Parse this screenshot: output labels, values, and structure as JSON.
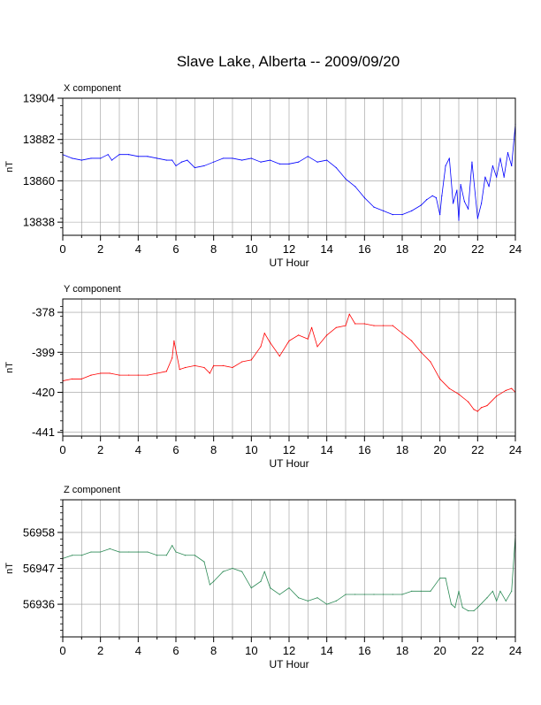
{
  "page": {
    "title": "Slave Lake, Alberta -- 2009/09/20"
  },
  "chart_data": [
    {
      "type": "line",
      "title": "X component",
      "xlabel": "UT Hour",
      "ylabel": "nT",
      "xlim": [
        0,
        24
      ],
      "ylim": [
        13831,
        13904
      ],
      "xticks": [
        0,
        2,
        4,
        6,
        8,
        10,
        12,
        14,
        16,
        18,
        20,
        22,
        24
      ],
      "yticks": [
        13838,
        13860,
        13882,
        13904
      ],
      "grid": true,
      "color": "#0000ff",
      "series": [
        {
          "x": [
            0,
            0.5,
            1,
            1.5,
            2,
            2.4,
            2.6,
            3,
            3.5,
            4,
            4.5,
            5,
            5.5,
            5.8,
            6,
            6.3,
            6.6,
            7,
            7.5,
            8,
            8.5,
            9,
            9.5,
            10,
            10.5,
            11,
            11.5,
            12,
            12.5,
            13,
            13.5,
            14,
            14.5,
            15,
            15.5,
            16,
            16.5,
            17,
            17.5,
            18,
            18.5,
            19,
            19.3,
            19.6,
            19.8,
            20,
            20.1,
            20.3,
            20.5,
            20.7,
            20.9,
            21,
            21.1,
            21.3,
            21.5,
            21.7,
            22,
            22.2,
            22.4,
            22.6,
            22.8,
            23,
            23.2,
            23.4,
            23.6,
            23.8,
            24
          ],
          "y": [
            13874,
            13872,
            13871,
            13872,
            13872,
            13874,
            13871,
            13874,
            13874,
            13873,
            13873,
            13872,
            13871,
            13871,
            13868,
            13870,
            13871,
            13867,
            13868,
            13870,
            13872,
            13872,
            13871,
            13872,
            13870,
            13871,
            13869,
            13869,
            13870,
            13873,
            13870,
            13871,
            13867,
            13861,
            13857,
            13851,
            13846,
            13844,
            13842,
            13842,
            13844,
            13847,
            13850,
            13852,
            13851,
            13842,
            13852,
            13868,
            13872,
            13848,
            13855,
            13839,
            13858,
            13849,
            13845,
            13870,
            13840,
            13848,
            13862,
            13857,
            13868,
            13862,
            13872,
            13862,
            13875,
            13868,
            13890
          ]
        }
      ]
    },
    {
      "type": "line",
      "title": "Y component",
      "xlabel": "UT Hour",
      "ylabel": "nT",
      "xlim": [
        0,
        24
      ],
      "ylim": [
        -443,
        -371
      ],
      "xticks": [
        0,
        2,
        4,
        6,
        8,
        10,
        12,
        14,
        16,
        18,
        20,
        22,
        24
      ],
      "yticks": [
        -378,
        -399,
        -420,
        -441
      ],
      "grid": true,
      "color": "#ff0000",
      "series": [
        {
          "x": [
            0,
            0.5,
            1,
            1.5,
            2,
            2.5,
            3,
            3.5,
            4,
            4.5,
            5,
            5.5,
            5.8,
            5.9,
            6.2,
            6.5,
            7,
            7.5,
            7.8,
            8,
            8.5,
            9,
            9.5,
            10,
            10.5,
            10.7,
            11,
            11.5,
            12,
            12.5,
            13,
            13.2,
            13.5,
            14,
            14.5,
            15,
            15.2,
            15.5,
            16,
            16.5,
            17,
            17.5,
            18,
            18.5,
            19,
            19.5,
            20,
            20.5,
            21,
            21.5,
            21.8,
            22,
            22.2,
            22.5,
            23,
            23.5,
            23.8,
            24
          ],
          "y": [
            -414,
            -413,
            -413,
            -411,
            -410,
            -410,
            -411,
            -411,
            -411,
            -411,
            -410,
            -409,
            -402,
            -393,
            -408,
            -407,
            -406,
            -407,
            -410,
            -406,
            -406,
            -407,
            -404,
            -403,
            -396,
            -389,
            -394,
            -401,
            -393,
            -390,
            -392,
            -386,
            -396,
            -390,
            -386,
            -385,
            -379,
            -384,
            -384,
            -385,
            -385,
            -385,
            -389,
            -393,
            -399,
            -404,
            -413,
            -418,
            -421,
            -425,
            -429,
            -430,
            -428,
            -427,
            -422,
            -419,
            -418,
            -420
          ]
        }
      ]
    },
    {
      "type": "line",
      "title": "Z component",
      "xlabel": "UT Hour",
      "ylabel": "nT",
      "xlim": [
        0,
        24
      ],
      "ylim": [
        56926,
        56968
      ],
      "xticks": [
        0,
        2,
        4,
        6,
        8,
        10,
        12,
        14,
        16,
        18,
        20,
        22,
        24
      ],
      "yticks": [
        56936,
        56947,
        56958
      ],
      "grid": true,
      "color": "#2e8b57",
      "series": [
        {
          "x": [
            0,
            0.5,
            1,
            1.5,
            2,
            2.5,
            3,
            3.5,
            4,
            4.5,
            5,
            5.5,
            5.8,
            6,
            6.5,
            7,
            7.5,
            7.8,
            8,
            8.5,
            9,
            9.5,
            10,
            10.5,
            10.7,
            11,
            11.5,
            12,
            12.5,
            13,
            13.5,
            14,
            14.5,
            15,
            15.5,
            16,
            16.5,
            17,
            17.5,
            18,
            18.5,
            19,
            19.5,
            20,
            20.3,
            20.6,
            20.8,
            21,
            21.2,
            21.5,
            21.8,
            22,
            22.5,
            22.8,
            23,
            23.2,
            23.5,
            23.8,
            24
          ],
          "y": [
            56950,
            56951,
            56951,
            56952,
            56952,
            56953,
            56952,
            56952,
            56952,
            56952,
            56951,
            56951,
            56954,
            56952,
            56951,
            56951,
            56949,
            56942,
            56943,
            56946,
            56947,
            56946,
            56941,
            56943,
            56946,
            56941,
            56939,
            56941,
            56938,
            56937,
            56938,
            56936,
            56937,
            56939,
            56939,
            56939,
            56939,
            56939,
            56939,
            56939,
            56940,
            56940,
            56940,
            56944,
            56944,
            56936,
            56935,
            56940,
            56935,
            56934,
            56934,
            56935,
            56938,
            56940,
            56937,
            56940,
            56937,
            56940,
            56957
          ]
        }
      ]
    }
  ]
}
